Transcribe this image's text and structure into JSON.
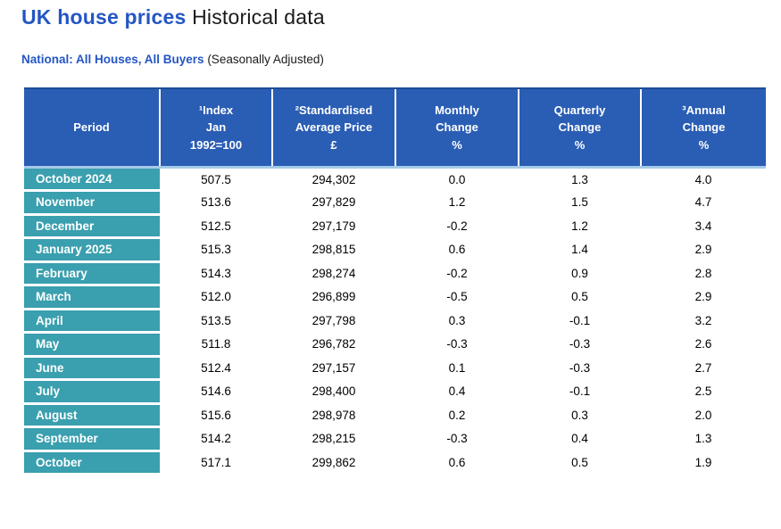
{
  "header": {
    "title_accent": "UK house prices",
    "title_plain": "Historical data",
    "subtitle_accent": "National: All Houses, All Buyers",
    "subtitle_plain": "(Seasonally Adjusted)"
  },
  "colors": {
    "accent_blue": "#2456C4",
    "table_header_blue": "#2A5DB4",
    "table_header_top_border": "#1E4C99",
    "header_divider_light_blue": "#A6CBE8",
    "period_label_teal": "#3A9FAE",
    "body_text": "#000000"
  },
  "table": {
    "headers": [
      "Period",
      "¹Index\nJan\n1992=100",
      "²Standardised\nAverage Price\n£",
      "Monthly\nChange\n%",
      "Quarterly\nChange\n%",
      "³Annual\nChange\n%"
    ],
    "rows": [
      {
        "period": "October 2024",
        "index": "507.5",
        "avg_price": "294,302",
        "monthly_change": "0.0",
        "quarterly_change": "1.3",
        "annual_change": "4.0"
      },
      {
        "period": "November",
        "index": "513.6",
        "avg_price": "297,829",
        "monthly_change": "1.2",
        "quarterly_change": "1.5",
        "annual_change": "4.7"
      },
      {
        "period": "December",
        "index": "512.5",
        "avg_price": "297,179",
        "monthly_change": "-0.2",
        "quarterly_change": "1.2",
        "annual_change": "3.4"
      },
      {
        "period": "January 2025",
        "index": "515.3",
        "avg_price": "298,815",
        "monthly_change": "0.6",
        "quarterly_change": "1.4",
        "annual_change": "2.9"
      },
      {
        "period": "February",
        "index": "514.3",
        "avg_price": "298,274",
        "monthly_change": "-0.2",
        "quarterly_change": "0.9",
        "annual_change": "2.8"
      },
      {
        "period": "March",
        "index": "512.0",
        "avg_price": "296,899",
        "monthly_change": "-0.5",
        "quarterly_change": "0.5",
        "annual_change": "2.9"
      },
      {
        "period": "April",
        "index": "513.5",
        "avg_price": "297,798",
        "monthly_change": "0.3",
        "quarterly_change": "-0.1",
        "annual_change": "3.2"
      },
      {
        "period": "May",
        "index": "511.8",
        "avg_price": "296,782",
        "monthly_change": "-0.3",
        "quarterly_change": "-0.3",
        "annual_change": "2.6"
      },
      {
        "period": "June",
        "index": "512.4",
        "avg_price": "297,157",
        "monthly_change": "0.1",
        "quarterly_change": "-0.3",
        "annual_change": "2.7"
      },
      {
        "period": "July",
        "index": "514.6",
        "avg_price": "298,400",
        "monthly_change": "0.4",
        "quarterly_change": "-0.1",
        "annual_change": "2.5"
      },
      {
        "period": "August",
        "index": "515.6",
        "avg_price": "298,978",
        "monthly_change": "0.2",
        "quarterly_change": "0.3",
        "annual_change": "2.0"
      },
      {
        "period": "September",
        "index": "514.2",
        "avg_price": "298,215",
        "monthly_change": "-0.3",
        "quarterly_change": "0.4",
        "annual_change": "1.3"
      },
      {
        "period": "October",
        "index": "517.1",
        "avg_price": "299,862",
        "monthly_change": "0.6",
        "quarterly_change": "0.5",
        "annual_change": "1.9"
      }
    ]
  }
}
